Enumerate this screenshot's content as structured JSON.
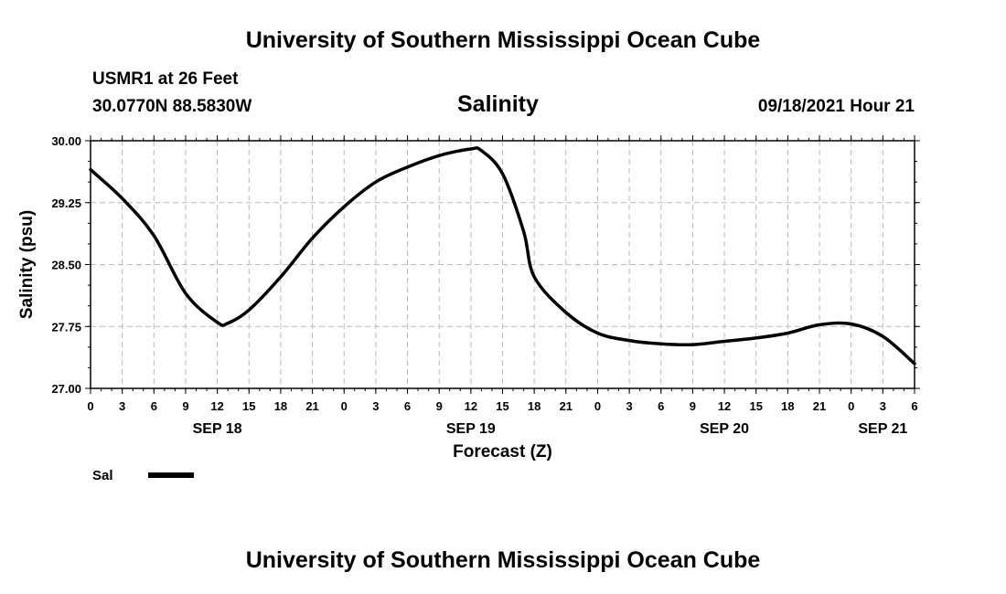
{
  "header": {
    "top_title": "University of Southern Mississippi Ocean Cube",
    "station": "USMR1 at 26 Feet",
    "coords": "30.0770N  88.5830W",
    "parameter": "Salinity",
    "issued": "09/18/2021 Hour 21"
  },
  "footer": {
    "bottom_title": "University of Southern Mississippi Ocean Cube"
  },
  "colors": {
    "line": "#000000",
    "grid": "#bbbbbb",
    "background": "#ffffff"
  },
  "chart_data": {
    "type": "line",
    "title": "Salinity",
    "xlabel": "Forecast (Z)",
    "ylabel": "Salinity (psu)",
    "x_unit": "hours since 2021-09-18 00Z",
    "xlim": [
      0,
      78
    ],
    "ylim": [
      27.0,
      30.0
    ],
    "y_ticks": [
      "27.00",
      "27.75",
      "28.50",
      "29.25",
      "30.00"
    ],
    "y_tick_values": [
      27.0,
      27.75,
      28.5,
      29.25,
      30.0
    ],
    "x_tick_labels": [
      "0",
      "3",
      "6",
      "9",
      "12",
      "15",
      "18",
      "21",
      "0",
      "3",
      "6",
      "9",
      "12",
      "15",
      "18",
      "21",
      "0",
      "3",
      "6",
      "9",
      "12",
      "15",
      "18",
      "21",
      "0",
      "3",
      "6"
    ],
    "date_labels": [
      {
        "label": "SEP 18",
        "hour": 12
      },
      {
        "label": "SEP 19",
        "hour": 36
      },
      {
        "label": "SEP 20",
        "hour": 60
      },
      {
        "label": "SEP 21",
        "hour": 75
      }
    ],
    "grid": true,
    "legend": [
      {
        "name": "Sal",
        "position": "bottom-left"
      }
    ],
    "series": [
      {
        "name": "Sal",
        "x": [
          0,
          3,
          6,
          9,
          12,
          13,
          15,
          18,
          21,
          24,
          27,
          30,
          33,
          36,
          37,
          39,
          41,
          42,
          45,
          48,
          51,
          54,
          57,
          60,
          63,
          66,
          69,
          72,
          75,
          78
        ],
        "values": [
          29.65,
          29.3,
          28.85,
          28.15,
          27.8,
          27.79,
          27.95,
          28.35,
          28.82,
          29.2,
          29.5,
          29.68,
          29.82,
          29.9,
          29.88,
          29.6,
          28.9,
          28.35,
          27.92,
          27.67,
          27.58,
          27.54,
          27.53,
          27.57,
          27.61,
          27.67,
          27.77,
          27.78,
          27.63,
          27.3
        ]
      }
    ]
  }
}
